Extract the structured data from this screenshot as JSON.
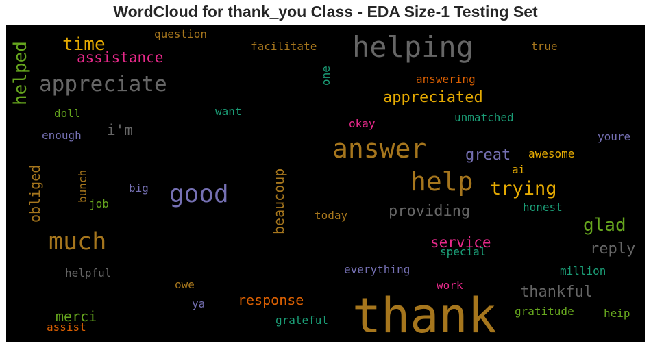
{
  "chart_data": {
    "type": "wordcloud",
    "title": "WordCloud for thank_you Class - EDA Size-1 Testing Set",
    "background": "#000000",
    "words": [
      {
        "text": "thank",
        "color": "#a6761d"
      },
      {
        "text": "helping",
        "color": "#666666"
      },
      {
        "text": "answer",
        "color": "#a6761d"
      },
      {
        "text": "help",
        "color": "#a6761d"
      },
      {
        "text": "good",
        "color": "#7570b3"
      },
      {
        "text": "much",
        "color": "#a6761d"
      },
      {
        "text": "appreciate",
        "color": "#666666"
      },
      {
        "text": "trying",
        "color": "#e6ab02"
      },
      {
        "text": "time",
        "color": "#e6ab02"
      },
      {
        "text": "helped",
        "color": "#66a61e"
      },
      {
        "text": "glad",
        "color": "#66a61e"
      },
      {
        "text": "appreciated",
        "color": "#e6ab02"
      },
      {
        "text": "assistance",
        "color": "#e7298a"
      },
      {
        "text": "beaucoup",
        "color": "#a6761d"
      },
      {
        "text": "obliged",
        "color": "#a6761d"
      },
      {
        "text": "providing",
        "color": "#666666"
      },
      {
        "text": "great",
        "color": "#7570b3"
      },
      {
        "text": "reply",
        "color": "#666666"
      },
      {
        "text": "thankful",
        "color": "#666666"
      },
      {
        "text": "service",
        "color": "#e7298a"
      },
      {
        "text": "response",
        "color": "#d95f02"
      },
      {
        "text": "merci",
        "color": "#66a61e"
      },
      {
        "text": "i'm",
        "color": "#666666"
      },
      {
        "text": "question",
        "color": "#a6761d"
      },
      {
        "text": "facilitate",
        "color": "#a6761d"
      },
      {
        "text": "true",
        "color": "#a6761d"
      },
      {
        "text": "answering",
        "color": "#d95f02"
      },
      {
        "text": "one",
        "color": "#1b9e77"
      },
      {
        "text": "want",
        "color": "#1b9e77"
      },
      {
        "text": "doll",
        "color": "#66a61e"
      },
      {
        "text": "okay",
        "color": "#e7298a"
      },
      {
        "text": "unmatched",
        "color": "#1b9e77"
      },
      {
        "text": "enough",
        "color": "#7570b3"
      },
      {
        "text": "youre",
        "color": "#7570b3"
      },
      {
        "text": "awesome",
        "color": "#e6ab02"
      },
      {
        "text": "bunch",
        "color": "#a6761d"
      },
      {
        "text": "ai",
        "color": "#e6ab02"
      },
      {
        "text": "big",
        "color": "#7570b3"
      },
      {
        "text": "job",
        "color": "#66a61e"
      },
      {
        "text": "honest",
        "color": "#1b9e77"
      },
      {
        "text": "today",
        "color": "#a6761d"
      },
      {
        "text": "special",
        "color": "#1b9e77"
      },
      {
        "text": "everything",
        "color": "#7570b3"
      },
      {
        "text": "million",
        "color": "#1b9e77"
      },
      {
        "text": "helpful",
        "color": "#666666"
      },
      {
        "text": "work",
        "color": "#e7298a"
      },
      {
        "text": "owe",
        "color": "#a6761d"
      },
      {
        "text": "ya",
        "color": "#7570b3"
      },
      {
        "text": "grateful",
        "color": "#1b9e77"
      },
      {
        "text": "gratitude",
        "color": "#66a61e"
      },
      {
        "text": "heip",
        "color": "#66a61e"
      },
      {
        "text": "assist",
        "color": "#d95f02"
      }
    ]
  }
}
